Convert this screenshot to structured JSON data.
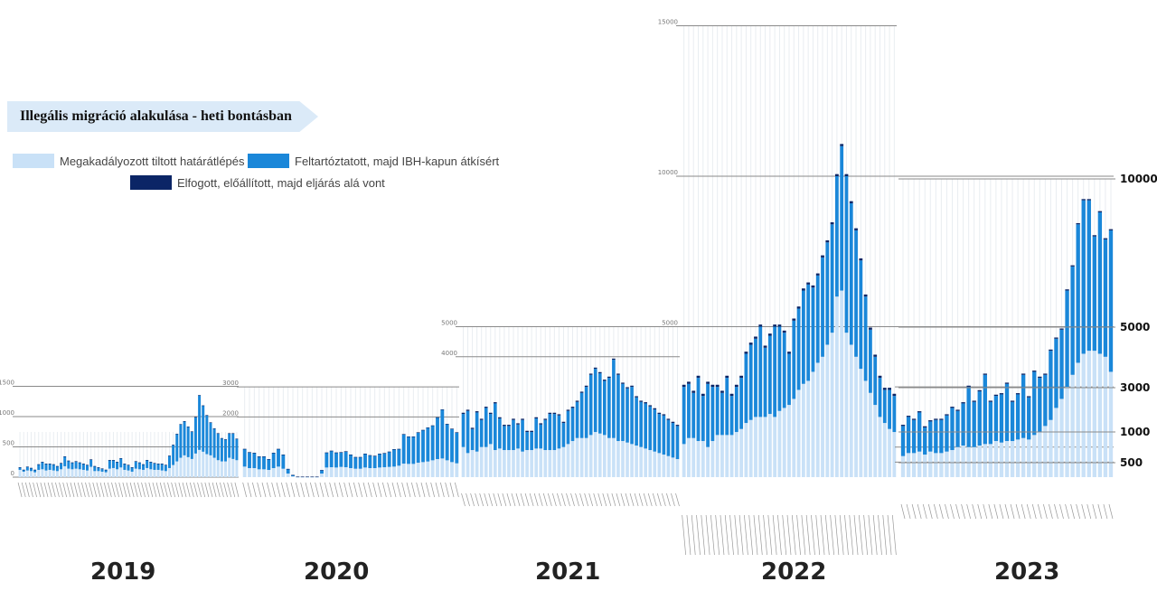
{
  "title": "Illegális migráció alakulása - heti bontásban",
  "legend": {
    "blocked": "Megakadályozott tiltott határátlépés",
    "escorted": "Feltartóztatott, majd IBH-kapun átkísért",
    "arrested": "Elfogott, előállított, majd eljárás alá vont"
  },
  "colors": {
    "blocked": "#c9e1f7",
    "escorted": "#1a87d9",
    "arrested": "#0b2566",
    "grid": "#8a8a8a"
  },
  "chart_data": {
    "type": "bar",
    "stacked": true,
    "x_unit": "week",
    "right_axis_ticks": [
      500,
      1000,
      3000,
      5000,
      10000
    ],
    "years": [
      {
        "label": "2019",
        "axis_ticks": [
          0,
          500,
          1000,
          1500
        ],
        "series": [
          {
            "name": "Megakadályozott tiltott határátlépés",
            "values": [
              120,
              90,
              110,
              100,
              80,
              120,
              130,
              110,
              120,
              110,
              100,
              130,
              180,
              140,
              130,
              140,
              130,
              120,
              110,
              170,
              100,
              100,
              90,
              80,
              140,
              150,
              130,
              160,
              120,
              110,
              90,
              140,
              130,
              120,
              150,
              130,
              120,
              120,
              110,
              100,
              150,
              200,
              260,
              320,
              360,
              330,
              300,
              390,
              450,
              420,
              380,
              360,
              320,
              280,
              260,
              260,
              320,
              300,
              280
            ]
          },
          {
            "name": "Feltartóztatott, majd IBH-kapun átkísért",
            "values": [
              40,
              30,
              60,
              50,
              40,
              90,
              120,
              110,
              100,
              100,
              80,
              100,
              160,
              130,
              110,
              120,
              110,
              100,
              90,
              120,
              80,
              60,
              50,
              40,
              140,
              130,
              120,
              150,
              100,
              90,
              70,
              120,
              110,
              90,
              130,
              120,
              110,
              100,
              110,
              100,
              200,
              330,
              450,
              550,
              560,
              500,
              450,
              600,
              900,
              760,
              640,
              540,
              480,
              440,
              380,
              360,
              400,
              420,
              350
            ]
          },
          {
            "name": "Elfogott, előállított, majd eljárás alá vont",
            "values": [
              3,
              3,
              3,
              3,
              3,
              3,
              3,
              3,
              3,
              3,
              3,
              3,
              3,
              3,
              3,
              3,
              3,
              3,
              3,
              3,
              3,
              3,
              3,
              3,
              3,
              3,
              3,
              3,
              3,
              3,
              3,
              3,
              3,
              3,
              3,
              3,
              3,
              3,
              3,
              3,
              5,
              5,
              5,
              5,
              5,
              5,
              5,
              5,
              5,
              5,
              5,
              5,
              5,
              5,
              5,
              5,
              5,
              5,
              5
            ]
          }
        ]
      },
      {
        "label": "2020",
        "axis_ticks": [
          2000,
          3000
        ],
        "series": [
          {
            "name": "Megakadályozott tiltott határátlépés",
            "values": [
              350,
              300,
              300,
              260,
              260,
              240,
              300,
              350,
              280,
              120,
              30,
              5,
              5,
              5,
              5,
              5,
              120,
              320,
              330,
              320,
              340,
              330,
              300,
              280,
              280,
              320,
              300,
              300,
              320,
              330,
              340,
              350,
              380,
              450,
              440,
              440,
              480,
              500,
              520,
              560,
              600,
              620,
              560,
              500,
              460
            ]
          },
          {
            "name": "Feltartóztatott, majd IBH-kapun átkísért",
            "values": [
              580,
              520,
              500,
              420,
              420,
              350,
              500,
              580,
              460,
              150,
              40,
              10,
              10,
              10,
              10,
              10,
              110,
              490,
              540,
              490,
              480,
              520,
              440,
              380,
              380,
              450,
              420,
              400,
              450,
              460,
              500,
              570,
              550,
              970,
              900,
              900,
              1000,
              1060,
              1120,
              1150,
              1380,
              1620,
              1200,
              1100,
              1020
            ]
          },
          {
            "name": "Elfogott, előállított, majd eljárás alá vont",
            "values": [
              10,
              10,
              10,
              10,
              10,
              10,
              10,
              10,
              10,
              5,
              3,
              2,
              2,
              2,
              2,
              2,
              5,
              10,
              10,
              10,
              10,
              10,
              10,
              10,
              10,
              10,
              10,
              10,
              10,
              10,
              10,
              10,
              10,
              10,
              10,
              10,
              10,
              10,
              10,
              10,
              10,
              10,
              10,
              10,
              10
            ]
          }
        ]
      },
      {
        "label": "2021",
        "axis_ticks": [
          4000,
          5000
        ],
        "series": [
          {
            "name": "Megakadályozott tiltott határátlépés",
            "values": [
              1000,
              800,
              900,
              850,
              1000,
              1000,
              1100,
              900,
              950,
              900,
              900,
              900,
              950,
              850,
              900,
              900,
              950,
              950,
              900,
              900,
              900,
              950,
              1000,
              1100,
              1200,
              1300,
              1300,
              1300,
              1400,
              1500,
              1450,
              1400,
              1300,
              1300,
              1200,
              1200,
              1150,
              1100,
              1050,
              1000,
              950,
              900,
              850,
              800,
              750,
              700,
              650,
              600
            ]
          },
          {
            "name": "Feltartóztatott, majd IBH-kapun átkísért",
            "values": [
              1100,
              1400,
              700,
              1300,
              900,
              1300,
              1000,
              1550,
              1000,
              800,
              800,
              1000,
              800,
              1050,
              600,
              600,
              1000,
              800,
              1000,
              1200,
              1200,
              1100,
              800,
              1100,
              1100,
              1200,
              1500,
              1700,
              2000,
              2100,
              2000,
              1800,
              2000,
              2600,
              2200,
              1900,
              1800,
              1900,
              1600,
              1500,
              1500,
              1450,
              1400,
              1300,
              1300,
              1200,
              1150,
              1100
            ]
          },
          {
            "name": "Elfogott, előállított, majd eljárás alá vont",
            "values": [
              40,
              40,
              40,
              40,
              40,
              40,
              40,
              40,
              40,
              40,
              40,
              40,
              40,
              40,
              40,
              40,
              40,
              40,
              40,
              40,
              40,
              40,
              40,
              40,
              40,
              40,
              40,
              40,
              40,
              40,
              40,
              40,
              40,
              40,
              40,
              40,
              40,
              40,
              40,
              40,
              40,
              40,
              40,
              40,
              40,
              40,
              40,
              40
            ]
          }
        ]
      },
      {
        "label": "2022",
        "axis_ticks": [
          5000,
          10000,
          15000
        ],
        "series": [
          {
            "name": "Megakadályozott tiltott határátlépés",
            "values": [
              1100,
              1300,
              1300,
              1200,
              1200,
              1000,
              1200,
              1400,
              1400,
              1400,
              1400,
              1500,
              1600,
              1800,
              1900,
              2000,
              2000,
              2000,
              2100,
              2000,
              2200,
              2300,
              2400,
              2600,
              2900,
              3100,
              3200,
              3500,
              3800,
              4000,
              4400,
              4800,
              6000,
              6200,
              4800,
              4400,
              4000,
              3600,
              3200,
              2800,
              2400,
              2000,
              1800,
              1600,
              1500
            ]
          },
          {
            "name": "Feltartóztatott, majd IBH-kapun átkísért",
            "values": [
              1900,
              1800,
              1500,
              2100,
              1500,
              2100,
              1800,
              1600,
              1400,
              1900,
              1300,
              1500,
              1700,
              2300,
              2500,
              2600,
              3000,
              2300,
              2600,
              3000,
              2800,
              2500,
              1700,
              2600,
              2700,
              3100,
              3200,
              2800,
              2900,
              3300,
              3400,
              3600,
              4000,
              4800,
              5200,
              4700,
              4200,
              3600,
              2800,
              2100,
              1600,
              1300,
              1100,
              1300,
              1200
            ]
          },
          {
            "name": "Elfogott, előállított, majd eljárás alá vont",
            "values": [
              70,
              70,
              70,
              70,
              70,
              70,
              70,
              70,
              70,
              70,
              70,
              70,
              70,
              70,
              70,
              70,
              70,
              70,
              70,
              70,
              70,
              70,
              70,
              70,
              70,
              70,
              70,
              70,
              70,
              70,
              70,
              70,
              70,
              70,
              70,
              70,
              70,
              70,
              70,
              70,
              70,
              70,
              70,
              70,
              70
            ]
          }
        ]
      },
      {
        "label": "2023",
        "axis_ticks": [
          500,
          1000,
          3000,
          5000,
          10000
        ],
        "series": [
          {
            "name": "Megakadályozott tiltott határátlépés",
            "values": [
              700,
              800,
              800,
              850,
              750,
              850,
              800,
              800,
              850,
              900,
              1000,
              1050,
              1000,
              1000,
              1050,
              1100,
              1100,
              1200,
              1150,
              1200,
              1200,
              1250,
              1300,
              1250,
              1400,
              1500,
              1700,
              1900,
              2300,
              2600,
              3000,
              3400,
              3800,
              4100,
              4200,
              4200,
              4100,
              4000,
              3500
            ]
          },
          {
            "name": "Feltartóztatott, majd IBH-kapun átkísért",
            "values": [
              1000,
              1200,
              1100,
              1300,
              900,
              1000,
              1100,
              1100,
              1200,
              1400,
              1200,
              1400,
              2000,
              1500,
              1800,
              2300,
              1400,
              1500,
              1600,
              1900,
              1300,
              1500,
              2100,
              1400,
              2100,
              1800,
              1700,
              2300,
              2300,
              2300,
              3200,
              3600,
              4600,
              5100,
              5000,
              3800,
              4700,
              3900,
              4700
            ]
          },
          {
            "name": "Elfogott, előállított, majd eljárás alá vont",
            "values": [
              40,
              40,
              40,
              40,
              40,
              40,
              40,
              40,
              40,
              40,
              40,
              40,
              40,
              40,
              40,
              40,
              40,
              40,
              40,
              40,
              40,
              40,
              40,
              40,
              40,
              40,
              40,
              40,
              40,
              40,
              40,
              40,
              40,
              40,
              40,
              40,
              40,
              40,
              40
            ]
          }
        ]
      }
    ]
  }
}
